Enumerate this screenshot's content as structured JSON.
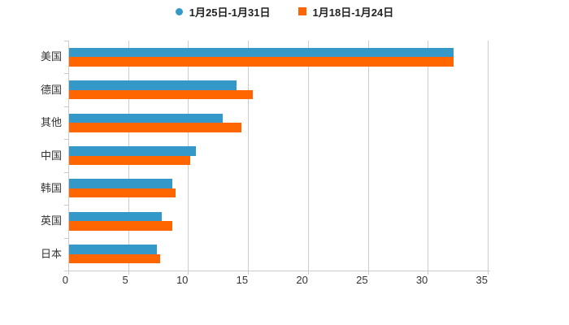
{
  "chart_data": {
    "type": "bar",
    "orientation": "horizontal",
    "title": "",
    "xlabel": "",
    "ylabel": "",
    "categories": [
      "美国",
      "德国",
      "其他",
      "中国",
      "韩国",
      "英国",
      "日本"
    ],
    "series": [
      {
        "name": "1月25日-1月31日",
        "color": "#3498c8",
        "marker": "circle",
        "values": [
          32.1,
          14.0,
          12.8,
          10.6,
          8.6,
          7.7,
          7.3
        ]
      },
      {
        "name": "1月18日-1月24日",
        "color": "#ff6600",
        "marker": "square",
        "values": [
          32.1,
          15.3,
          14.4,
          10.1,
          8.9,
          8.6,
          7.6
        ]
      }
    ],
    "x_ticks": [
      "0",
      "5",
      "10",
      "15",
      "20",
      "25",
      "30",
      "35"
    ],
    "xlim": [
      0,
      35
    ],
    "grid": true,
    "legend_position": "top-center",
    "colors": {
      "grid": "#cccccc",
      "axis": "#cccccc",
      "text": "#333333",
      "legend_text": "#222222",
      "background": "#ffffff",
      "series_blue": "#3498c8",
      "series_orange": "#ff6600"
    }
  }
}
